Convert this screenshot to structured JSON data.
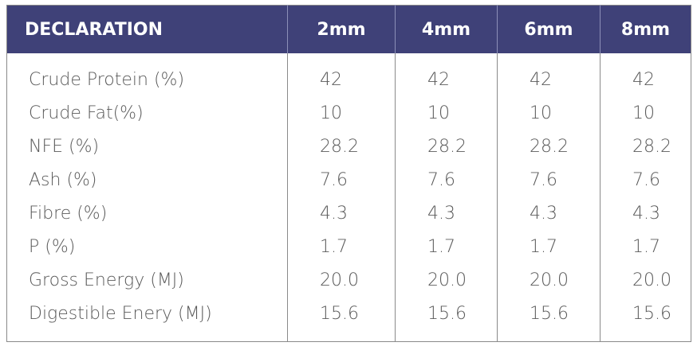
{
  "table": {
    "columns": [
      "DECLARATION",
      "2mm",
      "4mm",
      "6mm",
      "8mm"
    ],
    "rows": [
      {
        "label": "Crude Protein (%)",
        "values": [
          "42",
          "42",
          "42",
          "42"
        ]
      },
      {
        "label": "Crude Fat(%)",
        "values": [
          "10",
          "10",
          "10",
          "10"
        ]
      },
      {
        "label": "NFE (%)",
        "values": [
          "28.2",
          "28.2",
          "28.2",
          "28.2"
        ]
      },
      {
        "label": "Ash (%)",
        "values": [
          "7.6",
          "7.6",
          "7.6",
          "7.6"
        ]
      },
      {
        "label": "Fibre (%)",
        "values": [
          "4.3",
          "4.3",
          "4.3",
          "4.3"
        ]
      },
      {
        "label": "P (%)",
        "values": [
          "1.7",
          "1.7",
          "1.7",
          "1.7"
        ]
      },
      {
        "label": "Gross Energy (MJ)",
        "values": [
          "20.0",
          "20.0",
          "20.0",
          "20.0"
        ]
      },
      {
        "label": "Digestible Enery (MJ)",
        "values": [
          "15.6",
          "15.6",
          "15.6",
          "15.6"
        ]
      }
    ]
  }
}
